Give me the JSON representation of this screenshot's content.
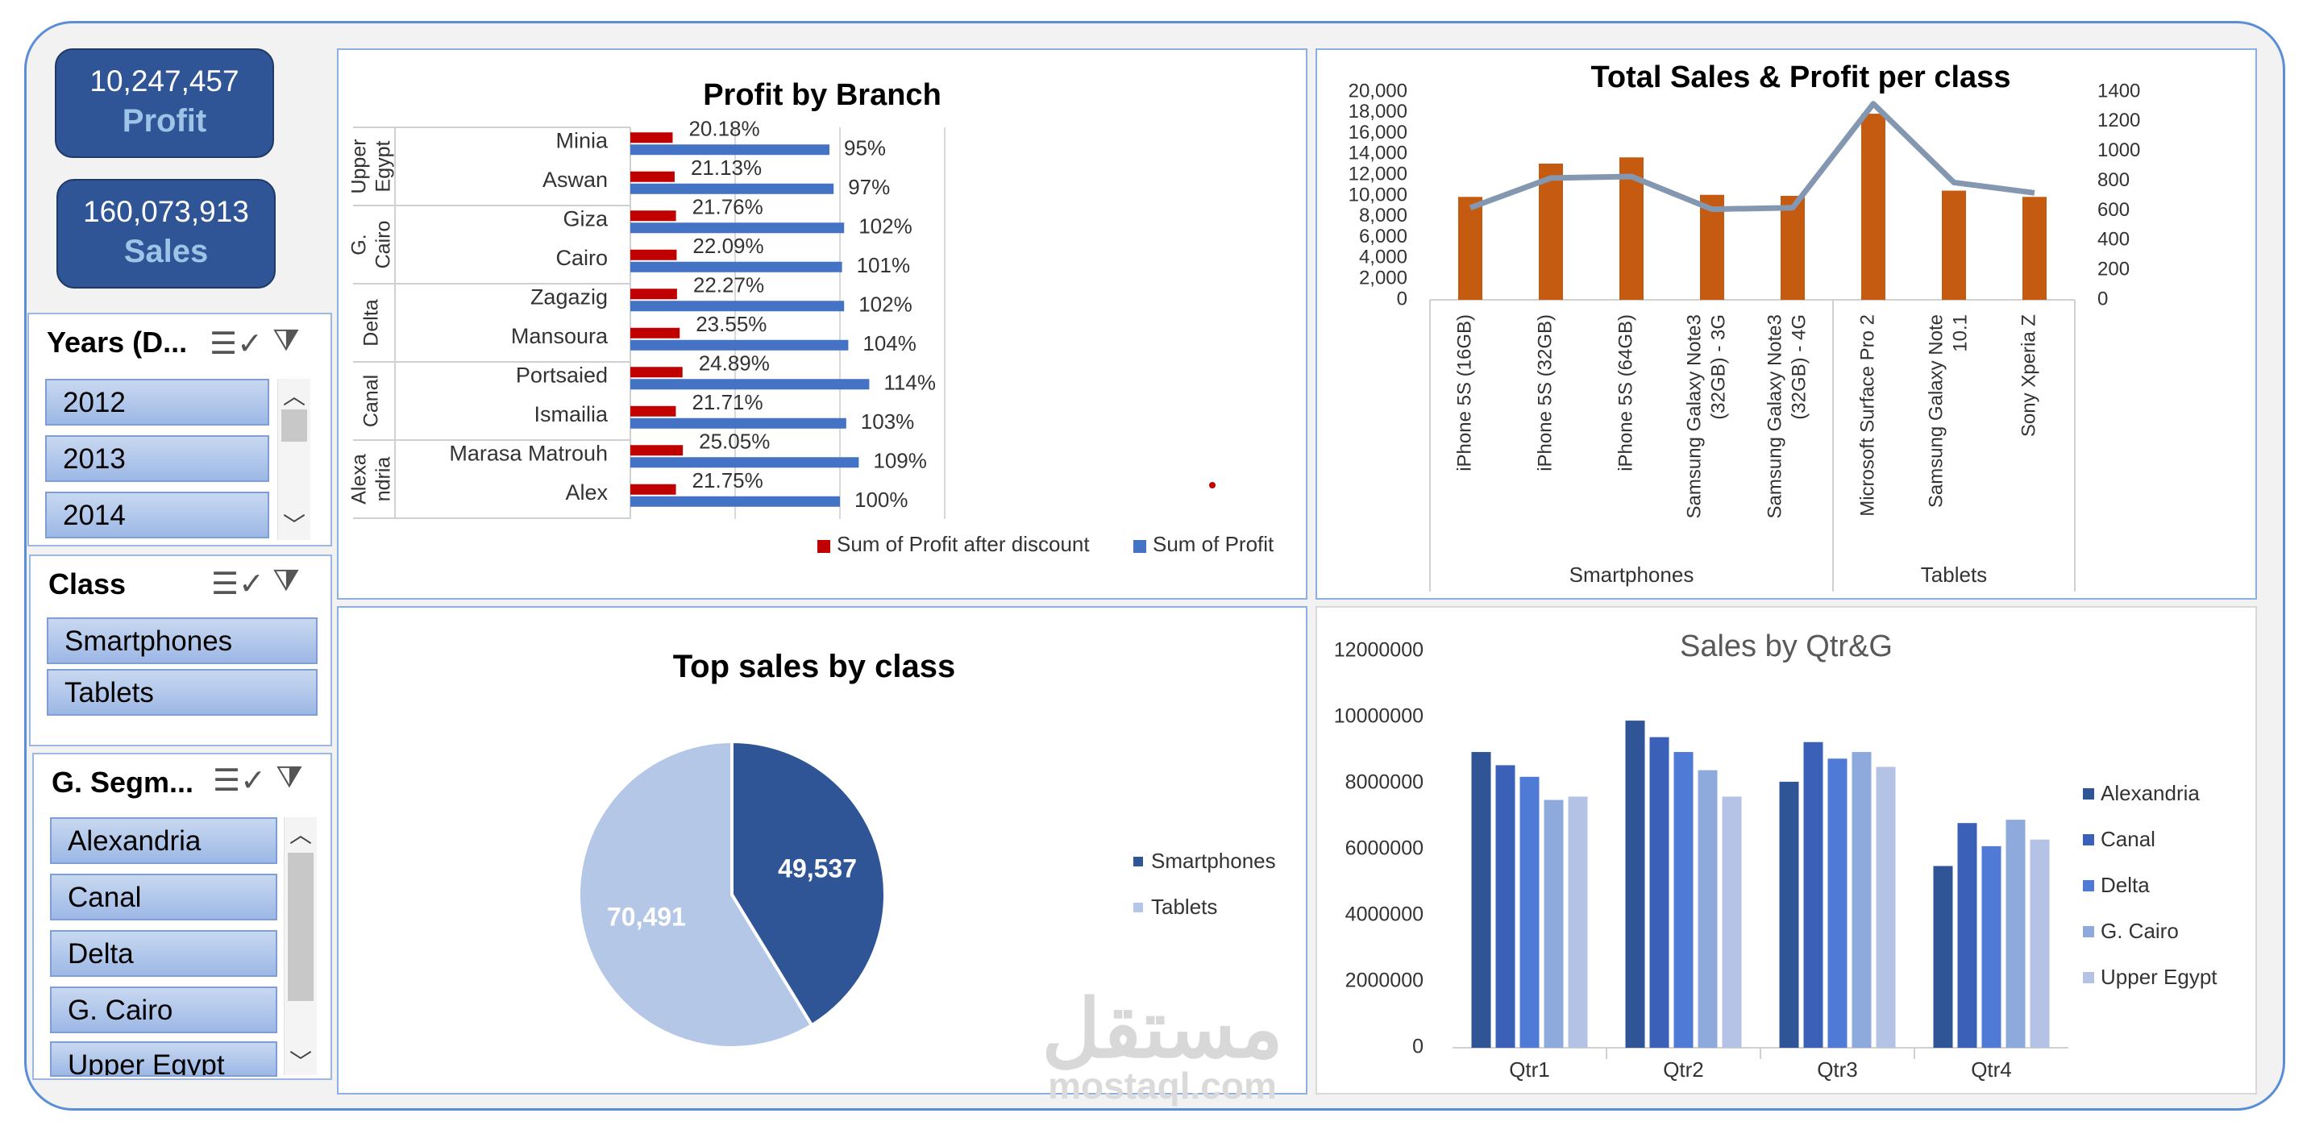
{
  "kpis": {
    "profit": {
      "value": "10,247,457",
      "label": "Profit"
    },
    "sales": {
      "value": "160,073,913",
      "label": "Sales"
    }
  },
  "slicers": {
    "years": {
      "title": "Years (D...",
      "items": [
        "2012",
        "2013",
        "2014"
      ]
    },
    "class": {
      "title": "Class",
      "items": [
        "Smartphones",
        "Tablets"
      ]
    },
    "segment": {
      "title": "G. Segm...",
      "items": [
        "Alexandria",
        "Canal",
        "Delta",
        "G. Cairo",
        "Upper Egypt"
      ]
    }
  },
  "icons": {
    "multi_select": "multi-select-icon",
    "clear_filter": "clear-filter-icon",
    "scroll_up": "chevron-up-icon",
    "scroll_down": "chevron-down-icon"
  },
  "colors": {
    "accent": "#2f5597",
    "profit_after_discount": "#c00000",
    "profit": "#4472c4",
    "bar_orange": "#c55a11",
    "line_gray": "#8497b0",
    "smartphones": "#2f5597",
    "tablets": "#b4c7e7",
    "qtr_series": [
      "#2f5597",
      "#3a60b8",
      "#4f7ad6",
      "#8ea9db",
      "#b4c2e6"
    ]
  },
  "watermark": {
    "text": "mostaql.com",
    "arabic": "مستقل"
  },
  "chart_data": [
    {
      "type": "bar",
      "orientation": "horizontal",
      "title": "Profit by Branch",
      "groups": [
        {
          "name": "Upper Egypt",
          "branches": [
            "Minia",
            "Aswan"
          ]
        },
        {
          "name": "G. Cairo",
          "branches": [
            "Giza",
            "Cairo"
          ]
        },
        {
          "name": "Delta",
          "branches": [
            "Zagazig",
            "Mansoura"
          ]
        },
        {
          "name": "Canal",
          "branches": [
            "Portsaied",
            "Ismailia"
          ]
        },
        {
          "name": "Alexandria",
          "branches": [
            "Marasa Matrouh",
            "Alex"
          ]
        }
      ],
      "categories": [
        "Minia",
        "Aswan",
        "Giza",
        "Cairo",
        "Zagazig",
        "Mansoura",
        "Portsaied",
        "Ismailia",
        "Marasa Matrouh",
        "Alex"
      ],
      "series": [
        {
          "name": "Sum of Profit after discount",
          "values": [
            20.18,
            21.13,
            21.76,
            22.09,
            22.27,
            23.55,
            24.89,
            21.71,
            25.05,
            21.75
          ],
          "labels": [
            "20.18%",
            "21.13%",
            "21.76%",
            "22.09%",
            "22.27%",
            "23.55%",
            "24.89%",
            "21.71%",
            "25.05%",
            "21.75%"
          ]
        },
        {
          "name": "Sum of Profit",
          "values": [
            95,
            97,
            102,
            101,
            102,
            104,
            114,
            103,
            109,
            100
          ],
          "labels": [
            "95%",
            "97%",
            "102%",
            "101%",
            "102%",
            "104%",
            "114%",
            "103%",
            "109%",
            "100%"
          ]
        }
      ],
      "xlim": [
        0,
        140
      ],
      "legend": "bottom"
    },
    {
      "type": "bar+line",
      "title": "Total Sales & Profit per class",
      "categories": [
        "iPhone 5S (16GB)",
        "iPhone 5S (32GB)",
        "iPhone 5S (64GB)",
        "Samsung Galaxy Note3 (32GB) - 3G",
        "Samsung Galaxy Note3 (32GB) - 4G",
        "Microsoft Surface Pro 2",
        "Samsung Galaxy Note 10.1",
        "Sony Xperia Z"
      ],
      "category_labels": [
        [
          "iPhone 5S (16GB)"
        ],
        [
          "iPhone 5S (32GB)"
        ],
        [
          "iPhone 5S (64GB)"
        ],
        [
          "Samsung Galaxy Note3",
          "(32GB) - 3G"
        ],
        [
          "Samsung Galaxy Note3",
          "(32GB) - 4G"
        ],
        [
          "Microsoft Surface Pro 2"
        ],
        [
          "Samsung Galaxy Note",
          "10.1"
        ],
        [
          "Sony Xperia Z"
        ]
      ],
      "groups": [
        {
          "name": "Smartphones",
          "count": 5
        },
        {
          "name": "Tablets",
          "count": 3
        }
      ],
      "bar_values": [
        9900,
        13100,
        13700,
        10100,
        10000,
        17900,
        10500,
        9900
      ],
      "line_values": [
        620,
        820,
        830,
        610,
        620,
        1320,
        790,
        720
      ],
      "ylim_left": [
        0,
        20000
      ],
      "yticks_left": [
        "0",
        "2,000",
        "4,000",
        "6,000",
        "8,000",
        "10,000",
        "12,000",
        "14,000",
        "16,000",
        "18,000",
        "20,000"
      ],
      "ylim_right": [
        0,
        1400
      ],
      "yticks_right": [
        "0",
        "200",
        "400",
        "600",
        "800",
        "1000",
        "1200",
        "1400"
      ]
    },
    {
      "type": "pie",
      "title": "Top sales by class",
      "slices": [
        {
          "name": "Smartphones",
          "value": 49537,
          "label": "49,537"
        },
        {
          "name": "Tablets",
          "value": 70491,
          "label": "70,491"
        }
      ],
      "legend": "right"
    },
    {
      "type": "bar",
      "title": "Sales by Qtr&G",
      "categories": [
        "Qtr1",
        "Qtr2",
        "Qtr3",
        "Qtr4"
      ],
      "series": [
        {
          "name": "Alexandria",
          "values": [
            8950000,
            9900000,
            8050000,
            5500000
          ]
        },
        {
          "name": "Canal",
          "values": [
            8550000,
            9400000,
            9250000,
            6800000
          ]
        },
        {
          "name": "Delta",
          "values": [
            8200000,
            8950000,
            8750000,
            6100000
          ]
        },
        {
          "name": "G. Cairo",
          "values": [
            7500000,
            8400000,
            8950000,
            6900000
          ]
        },
        {
          "name": "Upper Egypt",
          "values": [
            7600000,
            7600000,
            8500000,
            6300000
          ]
        }
      ],
      "ylim": [
        0,
        12000000
      ],
      "yticks": [
        "0",
        "2000000",
        "4000000",
        "6000000",
        "8000000",
        "10000000",
        "12000000"
      ],
      "legend": "right"
    }
  ]
}
